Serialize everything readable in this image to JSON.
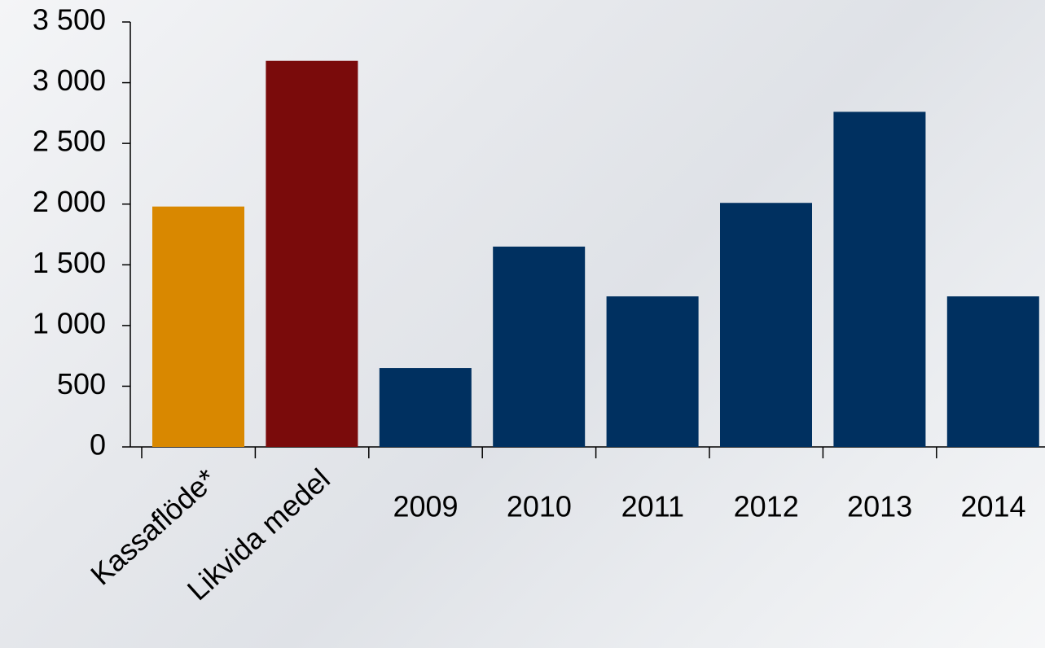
{
  "chart_data": {
    "type": "bar",
    "categories": [
      "Kassaflöde*",
      "Likvida medel",
      "2009",
      "2010",
      "2011",
      "2012",
      "2013",
      "2014"
    ],
    "values": [
      1980,
      3180,
      650,
      1650,
      1240,
      2010,
      2760,
      1240
    ],
    "colors": [
      "#d98800",
      "#7a0b0b",
      "#003060",
      "#003060",
      "#003060",
      "#003060",
      "#003060",
      "#003060"
    ],
    "ylim": [
      0,
      3500
    ],
    "yticks": [
      0,
      500,
      {
        "value": 1000,
        "label": "1 000"
      },
      {
        "value": 1500,
        "label": "1 500"
      },
      {
        "value": 2000,
        "label": "2 000"
      },
      {
        "value": 2500,
        "label": "2 500"
      },
      {
        "value": 3000,
        "label": "3 000"
      },
      {
        "value": 3500,
        "label": "3 500"
      }
    ],
    "grid": false
  }
}
